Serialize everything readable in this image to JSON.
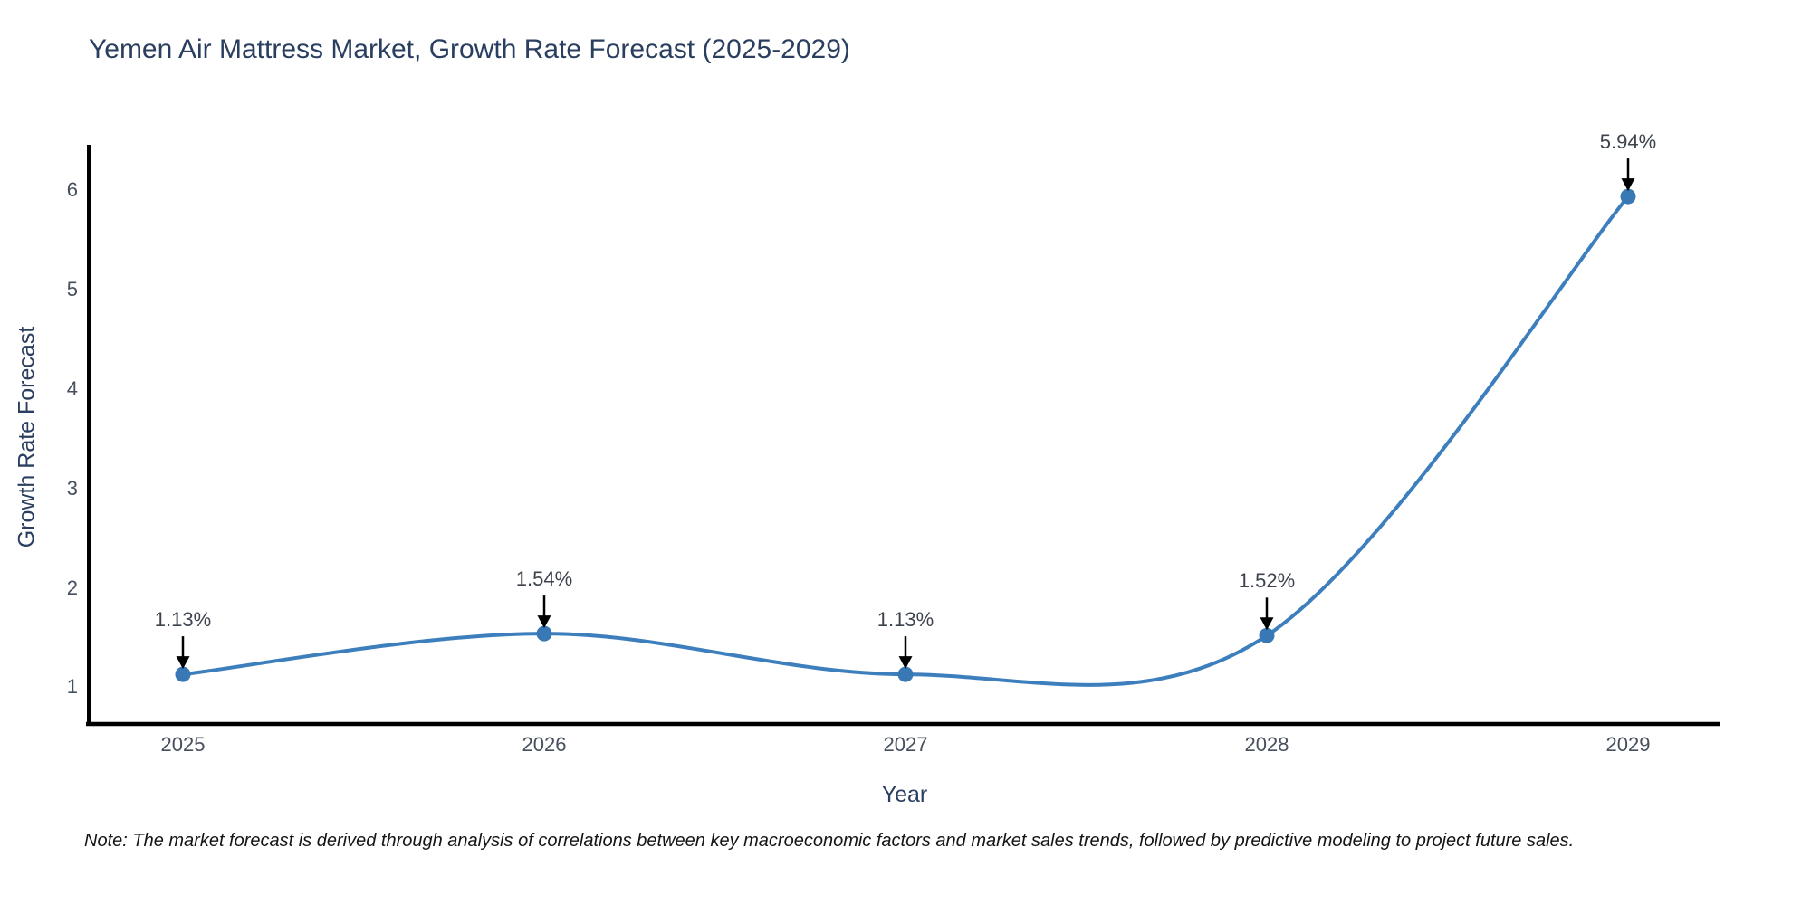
{
  "chart_data": {
    "type": "line",
    "title": "Yemen Air Mattress Market, Growth Rate Forecast (2025-2029)",
    "xlabel": "Year",
    "ylabel": "Growth Rate Forecast",
    "categories": [
      "2025",
      "2026",
      "2027",
      "2028",
      "2029"
    ],
    "series": [
      {
        "name": "Growth Rate Forecast",
        "values": [
          1.13,
          1.54,
          1.13,
          1.52,
          5.94
        ]
      }
    ],
    "point_labels": [
      "1.13%",
      "1.54%",
      "1.13%",
      "1.52%",
      "5.94%"
    ],
    "y_ticks": [
      "1",
      "2",
      "3",
      "4",
      "5",
      "6"
    ],
    "y_tick_values": [
      1,
      2,
      3,
      4,
      5,
      6
    ],
    "ylim": [
      0.63,
      6.46
    ],
    "line_shape": "spline",
    "grid": false,
    "legend": "none",
    "annotations_style": "label with down arrow to marker",
    "note": "Note: The market forecast is derived through analysis of correlations between key macroeconomic factors and market sales trends, followed by predictive modeling to project future sales.",
    "colors": {
      "line": "#3d7ebd",
      "marker": "#3878b4",
      "axis": "#000000",
      "arrow": "#000000",
      "title_text": "#2a3f5f",
      "tick_text": "#47505e",
      "annotation_text": "#3d434d"
    }
  }
}
